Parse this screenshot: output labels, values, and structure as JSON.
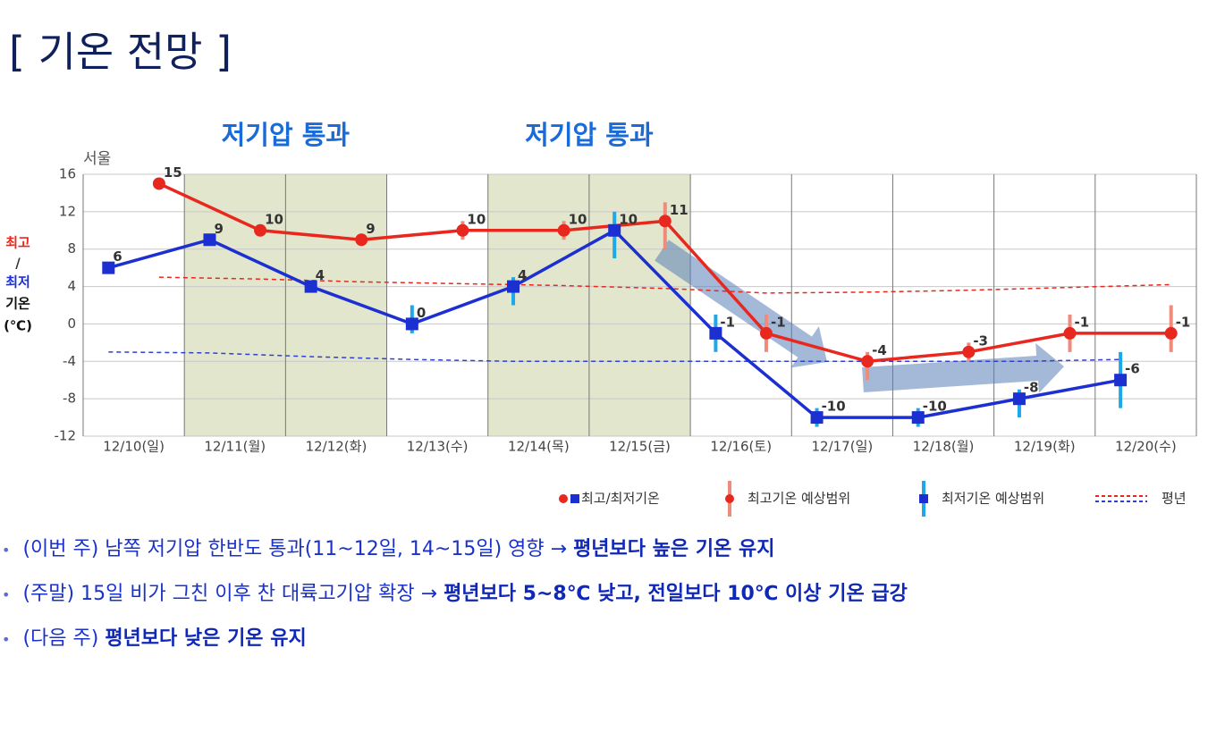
{
  "title": "[ 기온 전망 ]",
  "chart_data": {
    "type": "line",
    "station": "서울",
    "ylabel": {
      "high": "최고",
      "sep": "/",
      "low": "최저",
      "rest": "기온",
      "unit": "(℃)"
    },
    "categories": [
      "12/10(일)",
      "12/11(월)",
      "12/12(화)",
      "12/13(수)",
      "12/14(목)",
      "12/15(금)",
      "12/16(토)",
      "12/17(일)",
      "12/18(월)",
      "12/19(화)",
      "12/20(수)"
    ],
    "series": [
      {
        "color": "#e8281e",
        "range_color": "#f08a7a",
        "offset": 0.75,
        "values": [
          15,
          10,
          9,
          10,
          10,
          11,
          -1,
          -4,
          -3,
          -1,
          -1
        ],
        "range_low": [
          null,
          null,
          null,
          9,
          9,
          8,
          -3,
          -6,
          -4,
          -3,
          -3
        ],
        "range_high": [
          null,
          null,
          null,
          11,
          11,
          13,
          1,
          -3,
          -2,
          1,
          2
        ]
      },
      {
        "color": "#1c2fd0",
        "range_color": "#1ea8e8",
        "offset": 0.25,
        "values": [
          6,
          9,
          4,
          0,
          4,
          10,
          -1,
          -10,
          -10,
          -8,
          -6
        ],
        "range_low": [
          null,
          null,
          null,
          -1,
          2,
          7,
          -3,
          -11,
          -11,
          -10,
          -9
        ],
        "range_high": [
          null,
          null,
          null,
          2,
          5,
          12,
          1,
          -9,
          -9,
          -7,
          -3
        ]
      }
    ],
    "normal": [
      {
        "color": "#e8281e",
        "offset": 0.75,
        "values": [
          5,
          4.8,
          4.5,
          4.3,
          4.1,
          3.8,
          3.3,
          3.4,
          3.6,
          3.9,
          4.2
        ]
      },
      {
        "color": "#3040d0",
        "offset": 0.25,
        "values": [
          -3,
          -3.1,
          -3.5,
          -3.8,
          -4,
          -4,
          -4,
          -4,
          -4,
          -4,
          -3.8
        ]
      }
    ],
    "shaded": [
      {
        "label": "저기압 통과",
        "start": "12/11(월)",
        "end": "12/12(화)"
      },
      {
        "label": "저기압 통과",
        "start": "12/14(목)",
        "end": "12/15(금)"
      }
    ],
    "ylim": [
      -12,
      16
    ],
    "yticks": [
      -12,
      -8,
      -4,
      0,
      4,
      8,
      12,
      16
    ],
    "grid": true,
    "legend": [
      "최고/최저기온",
      "최고기온 예상범위",
      "최저기온 예상범위",
      "평년"
    ]
  },
  "bullets": [
    {
      "text": "(이번 주) 남쪽 저기압 한반도 통과(11~12일, 14~15일) 영향 → ",
      "bold": "평년보다 높은 기온 유지"
    },
    {
      "text": "(주말) 15일 비가 그친 이후 찬 대륙고기압 확장 → ",
      "bold": "평년보다 5~8℃ 낮고, 전일보다 10℃ 이상 기온 급강"
    },
    {
      "text": "(다음 주) ",
      "bold": "평년보다 낮은 기온 유지"
    }
  ]
}
